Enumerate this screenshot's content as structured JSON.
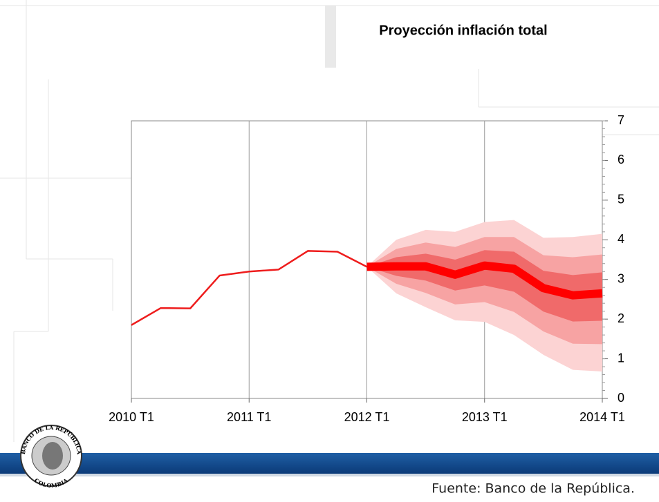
{
  "chart_data": {
    "type": "fan",
    "title": "Proyección inflación total",
    "source": "Fuente: Banco de la República.",
    "categories": [
      "2010 T1",
      null,
      null,
      null,
      "2011 T1",
      null,
      null,
      null,
      "2012 T1",
      null,
      null,
      null,
      "2013 T1",
      null,
      null,
      null,
      "2014 T1"
    ],
    "ylim": [
      0,
      7
    ],
    "yticks": [
      0,
      1,
      2,
      3,
      4,
      5,
      6,
      7
    ],
    "grid": true,
    "series": [
      {
        "color": "#ee1c1c",
        "width": 2.5,
        "values": [
          1.85,
          2.28,
          2.27,
          3.1,
          3.2,
          3.25,
          3.72,
          3.7,
          3.32,
          null,
          null,
          null,
          null,
          null,
          null,
          null,
          null
        ]
      },
      {
        "color": "#ff0000",
        "width": 12,
        "values": [
          null,
          null,
          null,
          null,
          null,
          null,
          null,
          null,
          3.32,
          3.33,
          3.33,
          3.12,
          3.35,
          3.27,
          2.78,
          2.6,
          2.65
        ]
      }
    ],
    "bands": [
      {
        "color": "#fcd3d3",
        "upper": [
          null,
          null,
          null,
          null,
          null,
          null,
          null,
          null,
          3.32,
          4.0,
          4.25,
          4.2,
          4.45,
          4.5,
          4.05,
          4.07,
          4.15
        ],
        "lower": [
          null,
          null,
          null,
          null,
          null,
          null,
          null,
          null,
          3.32,
          2.65,
          2.3,
          1.97,
          1.93,
          1.6,
          1.1,
          0.72,
          0.68
        ]
      },
      {
        "color": "#f7a3a3",
        "upper": [
          null,
          null,
          null,
          null,
          null,
          null,
          null,
          null,
          3.32,
          3.77,
          3.93,
          3.82,
          4.07,
          4.07,
          3.61,
          3.56,
          3.63
        ],
        "lower": [
          null,
          null,
          null,
          null,
          null,
          null,
          null,
          null,
          3.32,
          2.89,
          2.66,
          2.37,
          2.43,
          2.18,
          1.69,
          1.38,
          1.37
        ]
      },
      {
        "color": "#f06a6a",
        "upper": [
          null,
          null,
          null,
          null,
          null,
          null,
          null,
          null,
          3.32,
          3.56,
          3.65,
          3.5,
          3.74,
          3.7,
          3.22,
          3.11,
          3.18
        ],
        "lower": [
          null,
          null,
          null,
          null,
          null,
          null,
          null,
          null,
          3.32,
          3.09,
          2.97,
          2.72,
          2.85,
          2.69,
          2.19,
          1.94,
          1.96
        ]
      }
    ]
  },
  "logo": {
    "top": "BANCO DE LA REPÚBLICA",
    "bottom": "COLOMBIA"
  }
}
